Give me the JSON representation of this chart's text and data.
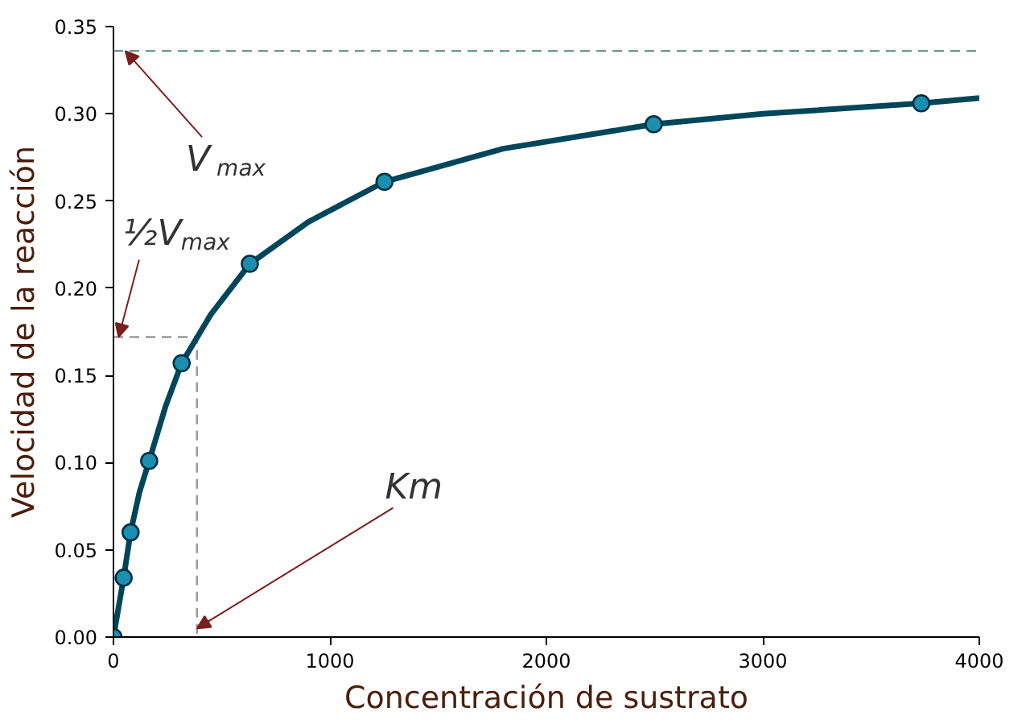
{
  "chart_data": {
    "type": "line",
    "xlabel": "Concentración de sustrato",
    "ylabel": "Velocidad de la reacción",
    "xlim": [
      0,
      4000
    ],
    "ylim": [
      0,
      0.35
    ],
    "xticks": [
      0,
      1000,
      2000,
      3000,
      4000
    ],
    "yticks": [
      {
        "value": 0,
        "label": "0.00"
      },
      {
        "value": 0.05,
        "label": "0.05"
      },
      {
        "value": 0.1,
        "label": "0.10"
      },
      {
        "value": 0.15,
        "label": "0.15"
      },
      {
        "value": 0.2,
        "label": "0.20"
      },
      {
        "value": 0.25,
        "label": "0.25"
      },
      {
        "value": 0.3,
        "label": "0.30"
      },
      {
        "value": 0.35,
        "label": "0.35"
      }
    ],
    "grid": false,
    "ref_lines": [
      {
        "axis": "y",
        "value": 0.336,
        "color": "#4a8a7a",
        "line_style": "dashed"
      }
    ],
    "series": [
      {
        "color": "#999999",
        "line_style": "dashed",
        "marker": "none",
        "x": [
          0,
          386,
          386
        ],
        "values": [
          0.172,
          0.172,
          0
        ]
      },
      {
        "color": "#00465a",
        "marker": "none",
        "x": [
          0,
          47,
          79,
          120,
          165,
          240,
          315,
          450,
          630,
          900,
          1252,
          1800,
          2496,
          3000,
          3732,
          4000
        ],
        "values": [
          0,
          0.034,
          0.06,
          0.083,
          0.101,
          0.132,
          0.157,
          0.185,
          0.214,
          0.238,
          0.261,
          0.28,
          0.294,
          0.3,
          0.306,
          0.309
        ]
      },
      {
        "type": "scatter",
        "color": "#1a8fb0",
        "marker": "circle",
        "x": [
          0,
          47,
          79,
          165,
          315,
          630,
          1252,
          2496,
          3732
        ],
        "values": [
          0,
          0.034,
          0.06,
          0.101,
          0.157,
          0.214,
          0.261,
          0.294,
          0.306
        ]
      }
    ],
    "annotations": [
      {
        "text": "V$_{max}$",
        "x": 55,
        "y": 0.336
      },
      {
        "text": "½V$_{max}$",
        "x": 24,
        "y": 0.172
      },
      {
        "text": "Km",
        "x": 386,
        "y": 0.005
      }
    ]
  }
}
